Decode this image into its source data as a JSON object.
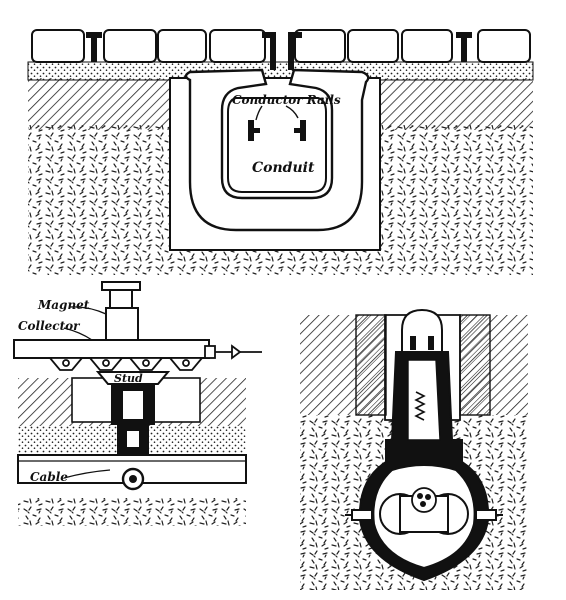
{
  "top_figure": {
    "label_rails": "Conductor Rails",
    "label_conduit": "Conduit"
  },
  "left_figure": {
    "label_magnet": "Magnet",
    "label_collector": "Collector",
    "label_stud": "Stud",
    "label_cable": "Cable"
  },
  "colors": {
    "ink": "#111111",
    "paper": "#ffffff",
    "hatch": "#222222"
  }
}
